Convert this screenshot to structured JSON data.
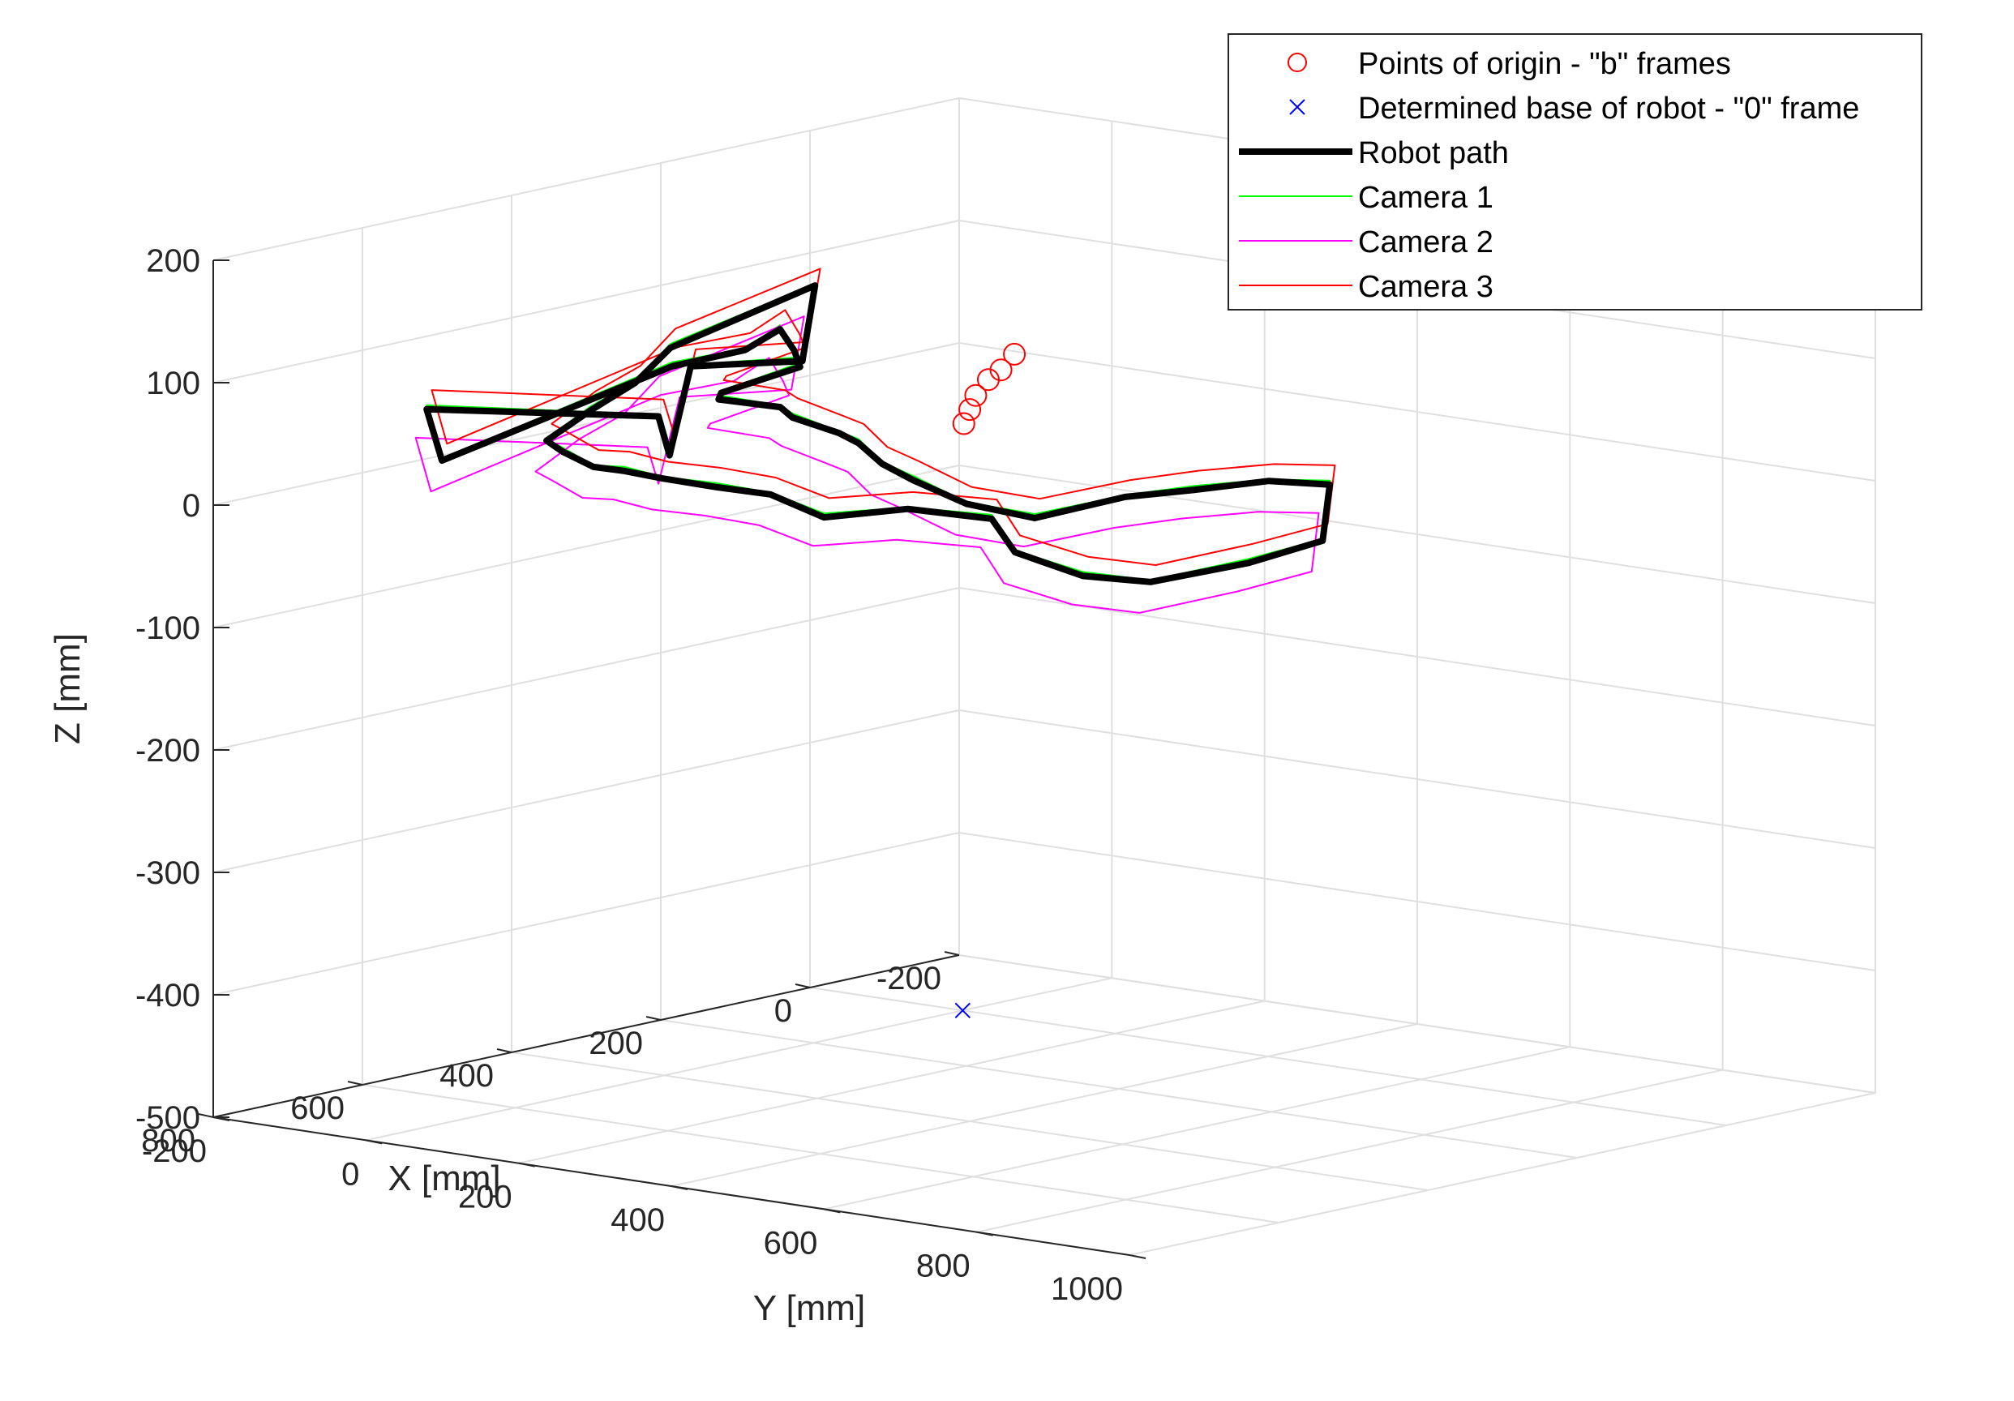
{
  "chart_data": {
    "type": "line",
    "projection": "3d",
    "title": "",
    "xlabel": "X [mm]",
    "ylabel": "Y [mm]",
    "zlabel": "Z [mm]",
    "xlim": [
      -200,
      800
    ],
    "ylim": [
      -200,
      1000
    ],
    "zlim": [
      -500,
      200
    ],
    "x_ticks": [
      "-200",
      "0",
      "200",
      "400",
      "600",
      "800"
    ],
    "y_ticks": [
      "-200",
      "0",
      "200",
      "400",
      "600",
      "800",
      "1000"
    ],
    "z_ticks": [
      "-500",
      "-400",
      "-300",
      "-200",
      "-100",
      "0",
      "100",
      "200"
    ],
    "grid": true,
    "legend": {
      "position": "top-right",
      "entries": [
        {
          "label": "Points of origin - \"b\" frames",
          "marker": "circle-open",
          "color": "#ff0000"
        },
        {
          "label": "Determined base of robot - \"0\" frame",
          "marker": "cross",
          "color": "#0000ff"
        },
        {
          "label": "Robot path",
          "line": "thick",
          "color": "#000000"
        },
        {
          "label": "Camera 1",
          "line": "thin",
          "color": "#00ff00"
        },
        {
          "label": "Camera 2",
          "line": "thin",
          "color": "#ff00ff"
        },
        {
          "label": "Camera 3",
          "line": "thin",
          "color": "#ff0000"
        }
      ]
    },
    "series": [
      {
        "name": "Points of origin - \"b\" frames",
        "kind": "scatter",
        "color": "#ff0000",
        "points": [
          [
            -100,
            -30,
            20
          ],
          [
            -80,
            -28,
            10
          ],
          [
            -60,
            -25,
            5
          ],
          [
            -40,
            -22,
            -5
          ],
          [
            -30,
            -20,
            -15
          ],
          [
            -20,
            -18,
            -25
          ]
        ]
      },
      {
        "name": "Determined base of robot - \"0\" frame",
        "kind": "scatter",
        "color": "#0000ff",
        "points": [
          [
            0,
            0,
            -500
          ]
        ]
      },
      {
        "name": "Robot path",
        "kind": "line",
        "color": "#000000",
        "points": [
          [
            400,
            8,
            95
          ],
          [
            205,
            7,
            120
          ],
          [
            220,
            5,
            60
          ],
          [
            380,
            15,
            78
          ],
          [
            480,
            85,
            25
          ],
          [
            500,
            90,
            60
          ],
          [
            780,
            60,
            100
          ],
          [
            780,
            80,
            60
          ],
          [
            400,
            10,
            80
          ],
          [
            300,
            8,
            80
          ],
          [
            250,
            5,
            90
          ],
          [
            230,
            4,
            70
          ],
          [
            220,
            2,
            55
          ],
          [
            380,
            55,
            60
          ],
          [
            450,
            120,
            70
          ],
          [
            480,
            230,
            78
          ],
          [
            520,
            285,
            80
          ],
          [
            560,
            385,
            82
          ],
          [
            600,
            450,
            85
          ],
          [
            640,
            520,
            80
          ],
          [
            660,
            580,
            75
          ],
          [
            650,
            640,
            60
          ],
          [
            620,
            700,
            50
          ],
          [
            560,
            760,
            65
          ],
          [
            520,
            810,
            70
          ],
          [
            490,
            880,
            80
          ],
          [
            470,
            940,
            80
          ],
          [
            500,
            960,
            40
          ],
          [
            600,
            960,
            35
          ],
          [
            700,
            930,
            30
          ],
          [
            760,
            900,
            40
          ],
          [
            800,
            850,
            60
          ],
          [
            780,
            800,
            80
          ],
          [
            790,
            700,
            80
          ],
          [
            800,
            600,
            65
          ],
          [
            790,
            520,
            75
          ],
          [
            780,
            440,
            72
          ],
          [
            760,
            350,
            68
          ],
          [
            740,
            280,
            65
          ],
          [
            720,
            220,
            60
          ],
          [
            690,
            150,
            62
          ],
          [
            650,
            90,
            60
          ],
          [
            560,
            60,
            70
          ],
          [
            480,
            40,
            80
          ],
          [
            400,
            8,
            95
          ]
        ]
      },
      {
        "name": "Camera 1",
        "kind": "line",
        "color": "#00ff00",
        "offset": [
          3,
          3,
          3
        ]
      },
      {
        "name": "Camera 2",
        "kind": "line",
        "color": "#ff00ff",
        "offset": [
          25,
          10,
          -20
        ]
      },
      {
        "name": "Camera 3",
        "kind": "line",
        "color": "#ff0000",
        "offset": [
          -15,
          -8,
          12
        ]
      }
    ]
  }
}
